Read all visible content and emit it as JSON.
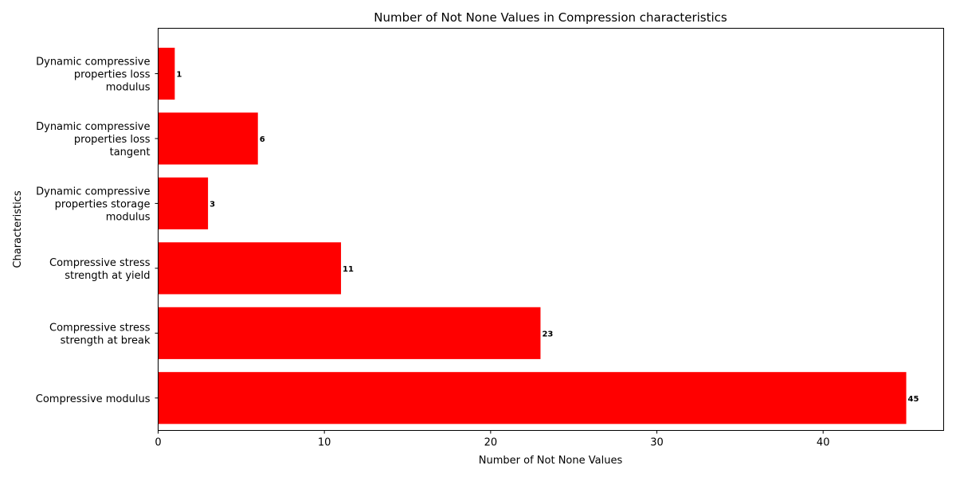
{
  "chart_data": {
    "type": "bar",
    "orientation": "horizontal",
    "title": "Number of Not None Values in Compression characteristics",
    "xlabel": "Number of Not None Values",
    "ylabel": "Characteristics",
    "categories": [
      "Compressive modulus",
      "Compressive stress strength at break",
      "Compressive stress strength at yield",
      "Dynamic compressive properties storage modulus",
      "Dynamic compressive properties loss tangent",
      "Dynamic compressive properties loss modulus"
    ],
    "category_label_lines": [
      [
        "Compressive modulus"
      ],
      [
        "Compressive stress",
        "strength at break"
      ],
      [
        "Compressive stress",
        "strength at yield"
      ],
      [
        "Dynamic compressive",
        "properties storage",
        "modulus"
      ],
      [
        "Dynamic compressive",
        "properties loss",
        "tangent"
      ],
      [
        "Dynamic compressive",
        "properties loss",
        "modulus"
      ]
    ],
    "values": [
      45,
      23,
      11,
      3,
      6,
      1
    ],
    "data_labels": [
      "45",
      "23",
      "11",
      "3",
      "6",
      "1"
    ],
    "xlim": [
      0,
      47.25
    ],
    "xticks": [
      0,
      10,
      20,
      30,
      40
    ],
    "xtick_labels": [
      "0",
      "10",
      "20",
      "30",
      "40"
    ],
    "bar_color": "#ff0000",
    "grid": false,
    "legend": "none"
  }
}
